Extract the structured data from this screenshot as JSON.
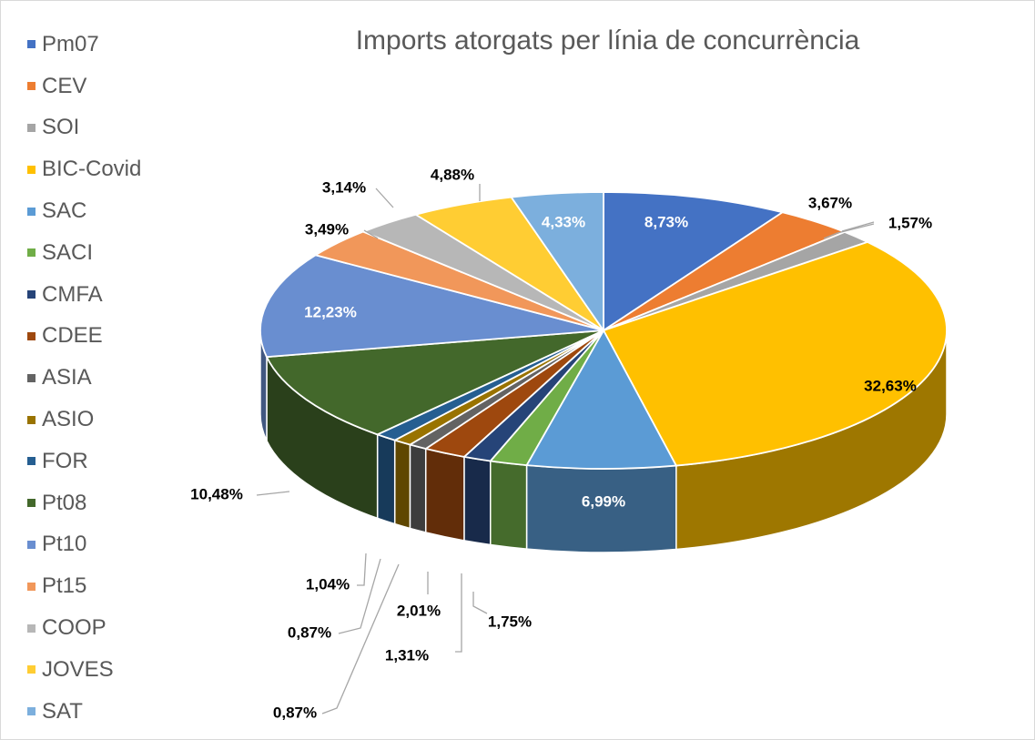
{
  "chart_data": {
    "type": "pie",
    "variant": "3d",
    "title": "Imports atorgats per línia de concurrència",
    "legend_position": "left",
    "slices": [
      {
        "label": "Pm07",
        "value": 8.73,
        "display": "8,73%",
        "color": "#4472C4"
      },
      {
        "label": "CEV",
        "value": 3.67,
        "display": "3,67%",
        "color": "#ED7D31"
      },
      {
        "label": "SOI",
        "value": 1.57,
        "display": "1,57%",
        "color": "#A5A5A5"
      },
      {
        "label": "BIC-Covid",
        "value": 32.63,
        "display": "32,63%",
        "color": "#FFC000"
      },
      {
        "label": "SAC",
        "value": 6.99,
        "display": "6,99%",
        "color": "#5B9BD5"
      },
      {
        "label": "SACI",
        "value": 1.75,
        "display": "1,75%",
        "color": "#70AD47"
      },
      {
        "label": "CMFA",
        "value": 1.31,
        "display": "1,31%",
        "color": "#264478"
      },
      {
        "label": "CDEE",
        "value": 2.01,
        "display": "2,01%",
        "color": "#9E480E"
      },
      {
        "label": "ASIA",
        "value": 0.87,
        "display": "0,87%",
        "color": "#636363"
      },
      {
        "label": "ASIO",
        "value": 0.87,
        "display": "0,87%",
        "color": "#997300"
      },
      {
        "label": "FOR",
        "value": 1.04,
        "display": "1,04%",
        "color": "#255E91"
      },
      {
        "label": "Pt08",
        "value": 10.48,
        "display": "10,48%",
        "color": "#43682B"
      },
      {
        "label": "Pt10",
        "value": 12.23,
        "display": "12,23%",
        "color": "#698ED0"
      },
      {
        "label": "Pt15",
        "value": 3.49,
        "display": "3,49%",
        "color": "#F1975A"
      },
      {
        "label": "COOP",
        "value": 3.14,
        "display": "3,14%",
        "color": "#B7B7B7"
      },
      {
        "label": "JOVES",
        "value": 4.88,
        "display": "4,88%",
        "color": "#FFCD33"
      },
      {
        "label": "SAT",
        "value": 4.33,
        "display": "4,33%",
        "color": "#7CAFDD"
      }
    ]
  }
}
